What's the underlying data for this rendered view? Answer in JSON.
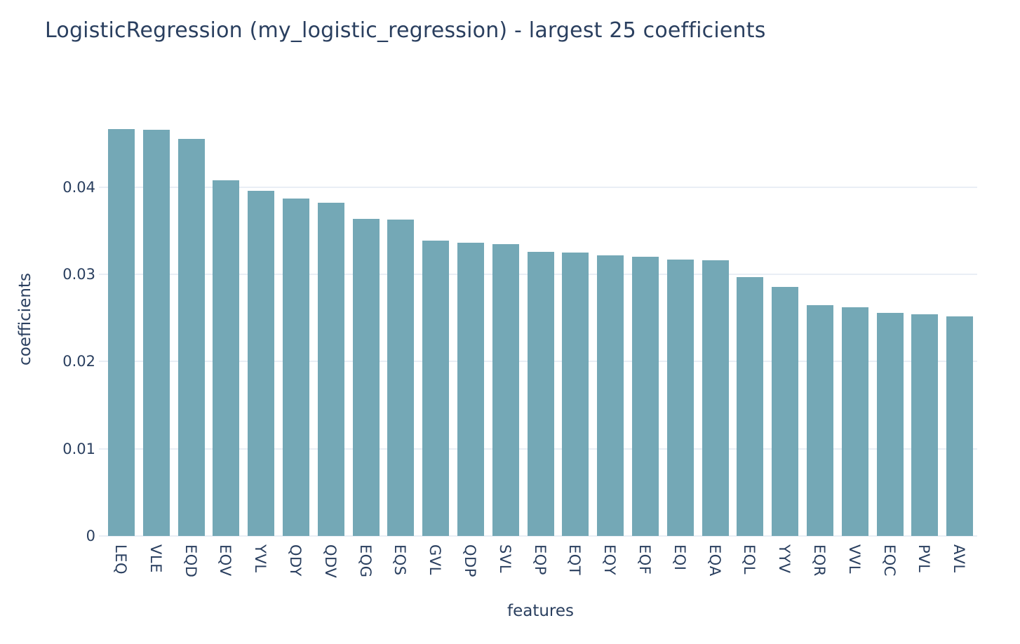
{
  "chart_data": {
    "type": "bar",
    "title": "LogisticRegression (my_logistic_regression) - largest 25 coefficients",
    "xlabel": "features",
    "ylabel": "coefficients",
    "categories": [
      "LEQ",
      "VLE",
      "EQD",
      "EQV",
      "YVL",
      "QDY",
      "QDV",
      "EQG",
      "EQS",
      "GVL",
      "QDP",
      "SVL",
      "EQP",
      "EQT",
      "EQY",
      "EQF",
      "EQI",
      "EQA",
      "EQL",
      "YYV",
      "EQR",
      "VVL",
      "EQC",
      "PVL",
      "AVL"
    ],
    "values": [
      0.0467,
      0.0466,
      0.0455,
      0.0408,
      0.0396,
      0.0387,
      0.0382,
      0.0364,
      0.0363,
      0.0339,
      0.0336,
      0.0335,
      0.0326,
      0.0325,
      0.0322,
      0.032,
      0.0317,
      0.0316,
      0.0297,
      0.0286,
      0.0265,
      0.0262,
      0.0256,
      0.0254,
      0.0252
    ],
    "ylim": [
      0,
      0.0494
    ],
    "yticks": [
      {
        "value": 0,
        "label": "0"
      },
      {
        "value": 0.01,
        "label": "0.01"
      },
      {
        "value": 0.02,
        "label": "0.02"
      },
      {
        "value": 0.03,
        "label": "0.03"
      },
      {
        "value": 0.04,
        "label": "0.04"
      }
    ],
    "grid": true,
    "legend": false,
    "x_tick_angle": 90,
    "colors": {
      "bar": "#74a8b6",
      "grid": "#e9eef5",
      "text": "#2a3f5f",
      "background": "#ffffff"
    }
  }
}
